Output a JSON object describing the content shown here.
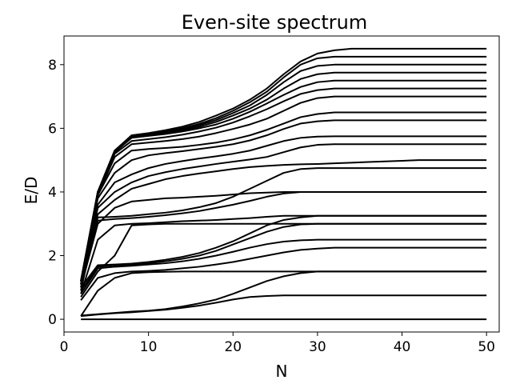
{
  "chart_data": {
    "type": "line",
    "title": "Even-site spectrum",
    "xlabel": "N",
    "ylabel": "E/D",
    "xlim": [
      0,
      51.5
    ],
    "ylim": [
      -0.4,
      8.9
    ],
    "xticks": [
      0,
      10,
      20,
      30,
      40,
      50
    ],
    "yticks": [
      0,
      2,
      4,
      6,
      8
    ],
    "line_color": "#000000",
    "grid": false,
    "legend": "none",
    "x": [
      2,
      4,
      6,
      8,
      10,
      12,
      14,
      16,
      18,
      20,
      22,
      24,
      26,
      28,
      30,
      32,
      34,
      36,
      38,
      40,
      42,
      44,
      46,
      48,
      50
    ],
    "series": [
      {
        "values": [
          0,
          0,
          0,
          0,
          0,
          0,
          0,
          0,
          0,
          0,
          0,
          0,
          0,
          0,
          0,
          0,
          0,
          0,
          0,
          0,
          0,
          0,
          0,
          0,
          0
        ]
      },
      {
        "values": [
          0.1,
          0.15,
          0.19,
          0.22,
          0.26,
          0.3,
          0.36,
          0.43,
          0.52,
          0.62,
          0.7,
          0.73,
          0.75,
          0.75,
          0.75,
          0.75,
          0.75,
          0.75,
          0.75,
          0.75,
          0.75,
          0.75,
          0.75,
          0.75,
          0.75
        ]
      },
      {
        "values": [
          0.12,
          0.16,
          0.2,
          0.24,
          0.27,
          0.32,
          0.4,
          0.5,
          0.62,
          0.8,
          1.0,
          1.2,
          1.35,
          1.45,
          1.5,
          1.5,
          1.5,
          1.5,
          1.5,
          1.5,
          1.5,
          1.5,
          1.5,
          1.5,
          1.5
        ]
      },
      {
        "values": [
          0.1,
          0.9,
          1.3,
          1.45,
          1.48,
          1.49,
          1.5,
          1.5,
          1.5,
          1.5,
          1.5,
          1.5,
          1.5,
          1.5,
          1.5,
          1.5,
          1.5,
          1.5,
          1.5,
          1.5,
          1.5,
          1.5,
          1.5,
          1.5,
          1.5
        ]
      },
      {
        "values": [
          0.6,
          1.3,
          1.45,
          1.5,
          1.52,
          1.55,
          1.6,
          1.65,
          1.72,
          1.8,
          1.9,
          2.0,
          2.1,
          2.18,
          2.22,
          2.25,
          2.25,
          2.25,
          2.25,
          2.25,
          2.25,
          2.25,
          2.25,
          2.25,
          2.25
        ]
      },
      {
        "values": [
          0.8,
          1.6,
          1.65,
          1.68,
          1.72,
          1.76,
          1.82,
          1.9,
          2.0,
          2.12,
          2.25,
          2.36,
          2.44,
          2.48,
          2.5,
          2.5,
          2.5,
          2.5,
          2.5,
          2.5,
          2.5,
          2.5,
          2.5,
          2.5,
          2.5
        ]
      },
      {
        "values": [
          0.9,
          1.65,
          1.7,
          1.72,
          1.76,
          1.82,
          1.9,
          2.0,
          2.15,
          2.35,
          2.55,
          2.75,
          2.9,
          2.98,
          3.0,
          3.0,
          3.0,
          3.0,
          3.0,
          3.0,
          3.0,
          3.0,
          3.0,
          3.0,
          3.0
        ]
      },
      {
        "values": [
          1.0,
          1.7,
          1.72,
          1.75,
          1.8,
          1.87,
          1.96,
          2.08,
          2.25,
          2.45,
          2.7,
          2.95,
          3.12,
          3.2,
          3.25,
          3.25,
          3.25,
          3.25,
          3.25,
          3.25,
          3.25,
          3.25,
          3.25,
          3.25,
          3.25
        ]
      },
      {
        "values": [
          0.7,
          1.5,
          2.0,
          2.95,
          2.98,
          3.0,
          3.0,
          3.0,
          3.0,
          3.0,
          3.0,
          3.0,
          3.0,
          3.0,
          3.0,
          3.0,
          3.0,
          3.0,
          3.0,
          3.0,
          3.0,
          3.0,
          3.0,
          3.0,
          3.0
        ]
      },
      {
        "values": [
          0.8,
          2.5,
          2.95,
          3.0,
          3.02,
          3.05,
          3.08,
          3.1,
          3.12,
          3.15,
          3.18,
          3.22,
          3.25,
          3.25,
          3.25,
          3.25,
          3.25,
          3.25,
          3.25,
          3.25,
          3.25,
          3.25,
          3.25,
          3.25,
          3.25
        ]
      },
      {
        "values": [
          1.1,
          3.1,
          3.15,
          3.18,
          3.22,
          3.27,
          3.33,
          3.4,
          3.5,
          3.6,
          3.72,
          3.85,
          3.95,
          4.0,
          4.0,
          4.0,
          4.0,
          4.0,
          4.0,
          4.0,
          4.0,
          4.0,
          4.0,
          4.0,
          4.0
        ]
      },
      {
        "values": [
          1.2,
          3.2,
          3.22,
          3.25,
          3.3,
          3.35,
          3.42,
          3.52,
          3.65,
          3.85,
          4.1,
          4.35,
          4.6,
          4.72,
          4.75,
          4.75,
          4.75,
          4.75,
          4.75,
          4.75,
          4.75,
          4.75,
          4.75,
          4.75,
          4.75
        ]
      },
      {
        "values": [
          1.0,
          3.0,
          3.5,
          3.7,
          3.75,
          3.8,
          3.82,
          3.85,
          3.88,
          3.92,
          3.96,
          3.98,
          4.0,
          4.0,
          4.0,
          4.0,
          4.0,
          4.0,
          4.0,
          4.0,
          4.0,
          4.0,
          4.0,
          4.0,
          4.0
        ]
      },
      {
        "values": [
          0.9,
          3.3,
          3.75,
          4.1,
          4.25,
          4.4,
          4.5,
          4.58,
          4.65,
          4.72,
          4.78,
          4.82,
          4.85,
          4.87,
          4.88,
          4.9,
          4.92,
          4.94,
          4.96,
          4.98,
          5.0,
          5.0,
          5.0,
          5.0,
          5.0
        ]
      },
      {
        "values": [
          1.1,
          3.5,
          4.0,
          4.3,
          4.5,
          4.62,
          4.72,
          4.8,
          4.88,
          4.95,
          5.02,
          5.1,
          5.25,
          5.4,
          5.48,
          5.5,
          5.5,
          5.5,
          5.5,
          5.5,
          5.5,
          5.5,
          5.5,
          5.5,
          5.5
        ]
      },
      {
        "values": [
          1.0,
          3.6,
          4.3,
          4.55,
          4.75,
          4.88,
          4.97,
          5.05,
          5.12,
          5.2,
          5.3,
          5.45,
          5.6,
          5.7,
          5.74,
          5.75,
          5.75,
          5.75,
          5.75,
          5.75,
          5.75,
          5.75,
          5.75,
          5.75,
          5.75
        ]
      },
      {
        "values": [
          1.1,
          3.8,
          4.6,
          5.0,
          5.15,
          5.22,
          5.28,
          5.35,
          5.42,
          5.5,
          5.62,
          5.78,
          5.98,
          6.15,
          6.22,
          6.25,
          6.25,
          6.25,
          6.25,
          6.25,
          6.25,
          6.25,
          6.25,
          6.25,
          6.25
        ]
      },
      {
        "values": [
          1.2,
          3.9,
          4.9,
          5.3,
          5.35,
          5.38,
          5.42,
          5.48,
          5.55,
          5.65,
          5.78,
          5.95,
          6.15,
          6.35,
          6.45,
          6.5,
          6.5,
          6.5,
          6.5,
          6.5,
          6.5,
          6.5,
          6.5,
          6.5,
          6.5
        ]
      },
      {
        "values": [
          1.1,
          3.9,
          5.1,
          5.5,
          5.55,
          5.6,
          5.66,
          5.74,
          5.85,
          5.98,
          6.12,
          6.3,
          6.55,
          6.8,
          6.95,
          7.0,
          7.0,
          7.0,
          7.0,
          7.0,
          7.0,
          7.0,
          7.0,
          7.0,
          7.0
        ]
      },
      {
        "values": [
          1.2,
          4.0,
          5.2,
          5.6,
          5.66,
          5.72,
          5.8,
          5.9,
          6.02,
          6.18,
          6.38,
          6.6,
          6.85,
          7.08,
          7.2,
          7.25,
          7.25,
          7.25,
          7.25,
          7.25,
          7.25,
          7.25,
          7.25,
          7.25,
          7.25
        ]
      },
      {
        "values": [
          1.2,
          4.0,
          5.25,
          5.7,
          5.76,
          5.82,
          5.9,
          6.0,
          6.12,
          6.3,
          6.52,
          6.78,
          7.05,
          7.3,
          7.45,
          7.5,
          7.5,
          7.5,
          7.5,
          7.5,
          7.5,
          7.5,
          7.5,
          7.5,
          7.5
        ]
      },
      {
        "values": [
          1.2,
          4.0,
          5.3,
          5.72,
          5.78,
          5.85,
          5.94,
          6.05,
          6.2,
          6.4,
          6.62,
          6.9,
          7.25,
          7.55,
          7.7,
          7.75,
          7.75,
          7.75,
          7.75,
          7.75,
          7.75,
          7.75,
          7.75,
          7.75,
          7.75
        ]
      },
      {
        "values": [
          1.2,
          4.0,
          5.3,
          5.74,
          5.8,
          5.88,
          5.98,
          6.1,
          6.26,
          6.48,
          6.72,
          7.05,
          7.45,
          7.8,
          7.96,
          8.0,
          8.0,
          8.0,
          8.0,
          8.0,
          8.0,
          8.0,
          8.0,
          8.0,
          8.0
        ]
      },
      {
        "values": [
          1.2,
          4.0,
          5.3,
          5.76,
          5.82,
          5.9,
          6.0,
          6.14,
          6.32,
          6.55,
          6.82,
          7.15,
          7.6,
          8.0,
          8.2,
          8.25,
          8.25,
          8.25,
          8.25,
          8.25,
          8.25,
          8.25,
          8.25,
          8.25,
          8.25
        ]
      },
      {
        "values": [
          1.2,
          4.0,
          5.3,
          5.78,
          5.85,
          5.94,
          6.05,
          6.2,
          6.4,
          6.62,
          6.9,
          7.25,
          7.7,
          8.1,
          8.35,
          8.45,
          8.5,
          8.5,
          8.5,
          8.5,
          8.5,
          8.5,
          8.5,
          8.5,
          8.5
        ]
      }
    ]
  }
}
